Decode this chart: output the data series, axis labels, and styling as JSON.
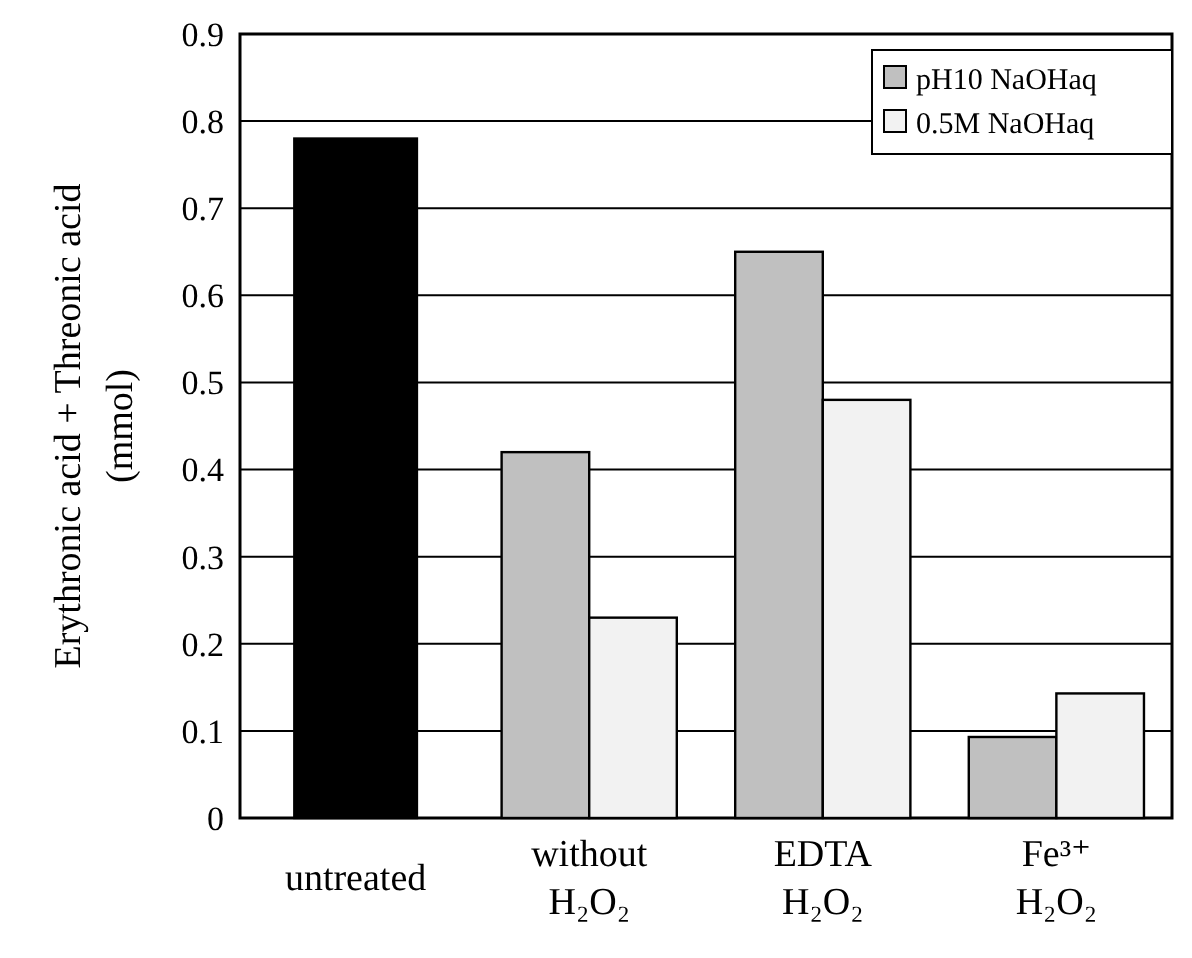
{
  "chart_data": {
    "type": "bar",
    "ylabel": "Erythronic acid + Threonic acid\n(mmol)",
    "categories": [
      "untreated",
      "without\nH₂O₂",
      "EDTA\nH₂O₂",
      "Fe³⁺\nH₂O₂"
    ],
    "series": [
      {
        "color": "#000000",
        "values": [
          0.78,
          null,
          null,
          null
        ]
      },
      {
        "name": "pH10 NaOHaq",
        "color": "#c0c0c0",
        "values": [
          null,
          0.42,
          0.65,
          0.093
        ]
      },
      {
        "name": "0.5M NaOHaq",
        "color": "#f2f2f2",
        "values": [
          null,
          0.23,
          0.48,
          0.143
        ]
      }
    ],
    "ylim": [
      0,
      0.9
    ],
    "yticks": [
      0,
      0.1,
      0.2,
      0.3,
      0.4,
      0.5,
      0.6,
      0.7,
      0.8,
      0.9
    ],
    "grid": "y",
    "legend": "top right"
  }
}
